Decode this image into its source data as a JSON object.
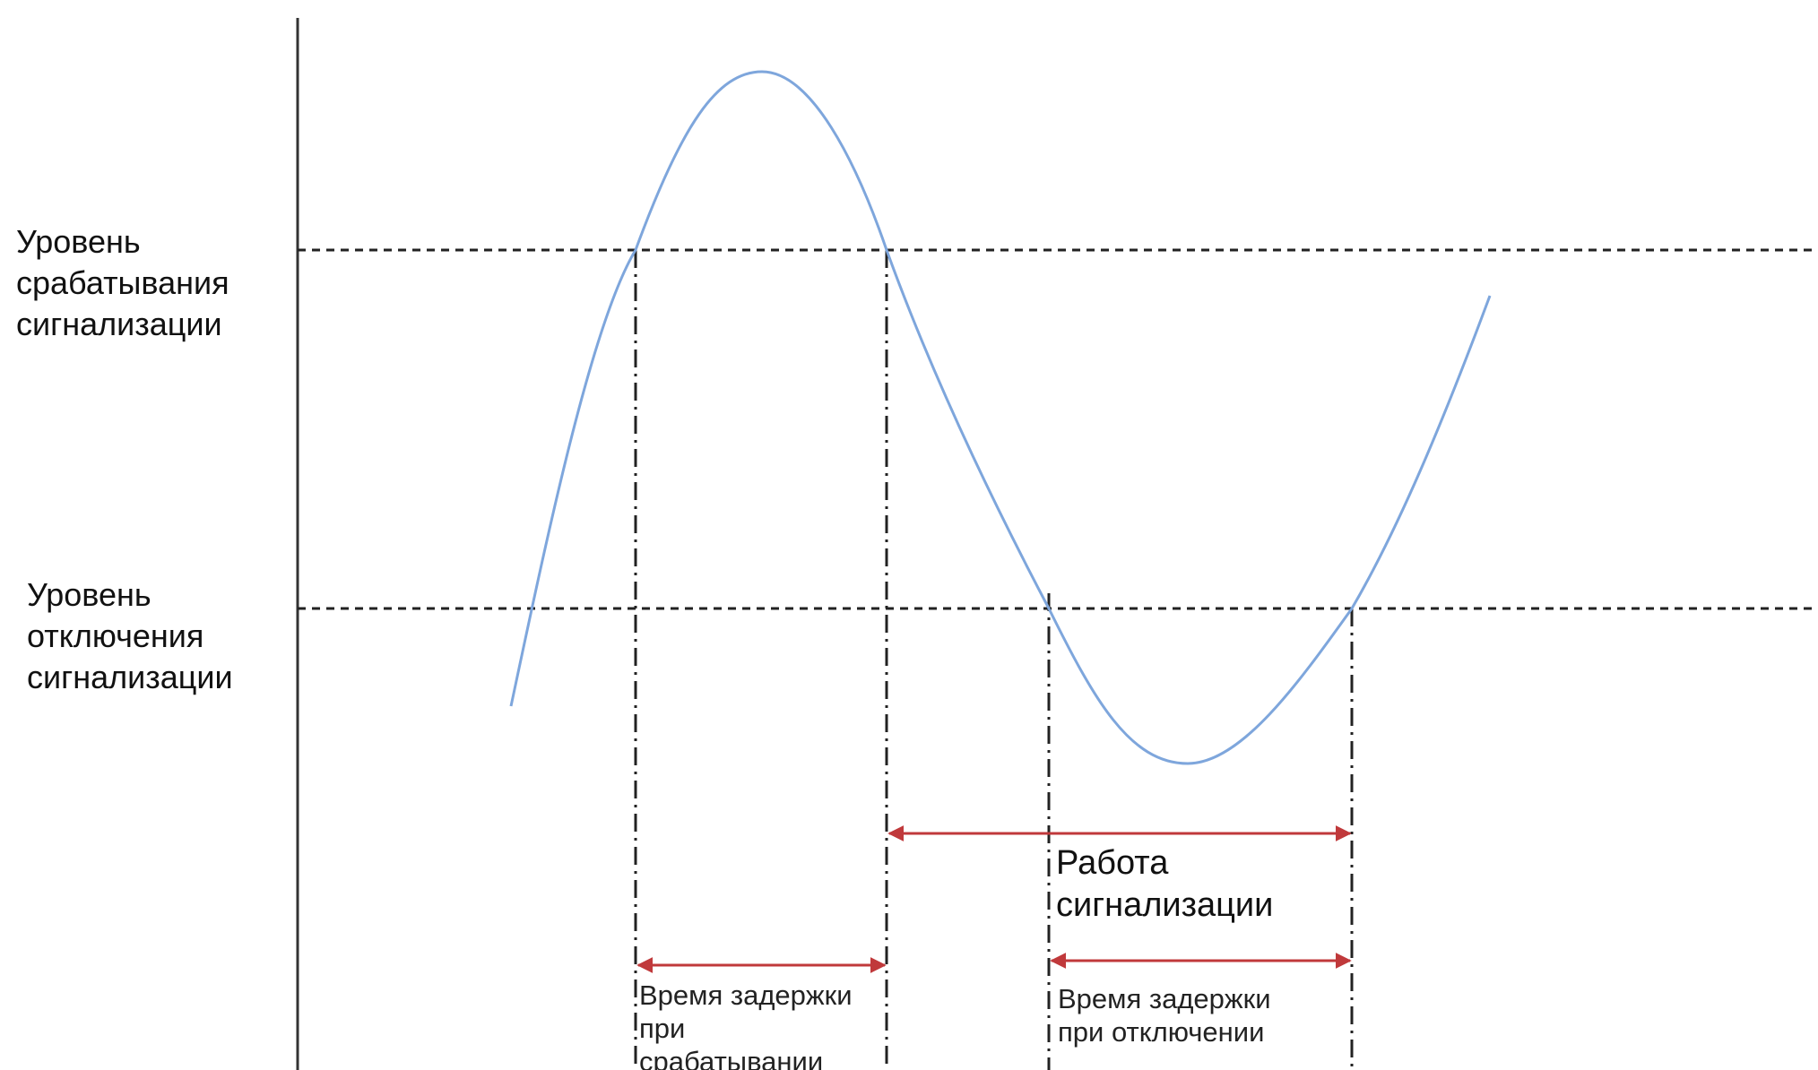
{
  "labels": {
    "trigger_level": [
      "Уровень",
      "срабатывания",
      "сигнализации"
    ],
    "release_level": [
      "Уровень",
      "отключения",
      "сигнализации"
    ],
    "alarm_active": [
      "Работа",
      "сигнализации"
    ],
    "delay_on": [
      "Время задержки",
      "при",
      "срабатывании"
    ],
    "delay_off": [
      "Время задержки",
      "при отключении"
    ]
  },
  "colors": {
    "signal_curve": "#7ea6dc",
    "arrows": "#c0393b",
    "lines": "#222222"
  }
}
